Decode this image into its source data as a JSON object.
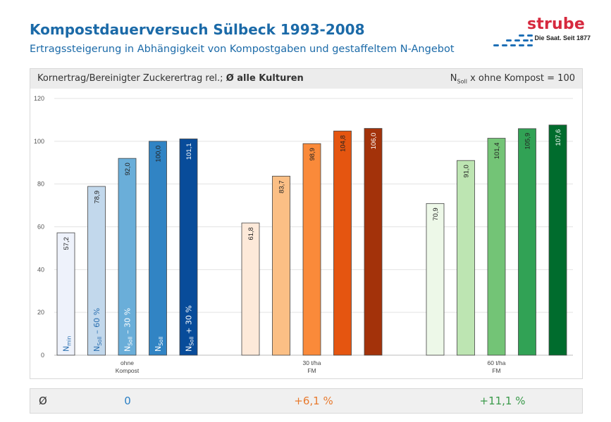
{
  "header": {
    "title": "Kompostdauerversuch Sülbeck 1993-2008",
    "subtitle": "Ertragssteigerung in Abhängigkeit von Kompostgaben und gestaffeltem N-Angebot"
  },
  "logo": {
    "word": "strube",
    "tagline": "Die Saat. Seit 1877",
    "color": "#d6293e",
    "dots_color": "#1e6fb6"
  },
  "chart_header": {
    "left_prefix": "Kornertrag/Bereinigter Zuckerertrag rel.; ",
    "left_bold": "Ø alle Kulturen",
    "right_main": "N",
    "right_sub": "Soll",
    "right_rest": " x ohne Kompost = 100"
  },
  "chart_data": {
    "type": "bar",
    "ylim": [
      0,
      120
    ],
    "yticks": [
      0,
      20,
      40,
      60,
      80,
      100,
      120
    ],
    "grid": true,
    "groups": [
      {
        "label_lines": [
          "ohne",
          "Kompost"
        ],
        "values": [
          57.2,
          78.9,
          92.0,
          100.0,
          101.1
        ],
        "value_labels": [
          "57,2",
          "78,9",
          "92,0",
          "100,0",
          "101,1"
        ],
        "colors": [
          "#eef2fb",
          "#c2d8ec",
          "#6aaed9",
          "#3184c4",
          "#084c9a"
        ],
        "label_colors": [
          "#222",
          "#222",
          "#222",
          "#222",
          "#ffffff"
        ]
      },
      {
        "label_lines": [
          "30 t/ha",
          "FM"
        ],
        "values": [
          61.8,
          83.7,
          98.9,
          104.8,
          106.0
        ],
        "value_labels": [
          "61,8",
          "83,7",
          "98,9",
          "104,8",
          "106,0"
        ],
        "colors": [
          "#fde9d9",
          "#fbbf85",
          "#fa8a3a",
          "#e55510",
          "#a3320a"
        ],
        "label_colors": [
          "#222",
          "#222",
          "#222",
          "#222",
          "#ffffff"
        ]
      },
      {
        "label_lines": [
          "60 t/ha",
          "FM"
        ],
        "values": [
          70.9,
          91.0,
          101.4,
          105.9,
          107.6
        ],
        "value_labels": [
          "70,9",
          "91,0",
          "101,4",
          "105,9",
          "107,6"
        ],
        "colors": [
          "#edf8e8",
          "#bde5b2",
          "#73c476",
          "#31a255",
          "#006c2d"
        ],
        "label_colors": [
          "#222",
          "#222",
          "#222",
          "#222",
          "#ffffff"
        ]
      }
    ],
    "n_labels": [
      {
        "main": "N",
        "sub": "min",
        "rest": "",
        "color": "#2a6fb0"
      },
      {
        "main": "N",
        "sub": "Soll",
        "rest": " – 60 %",
        "color": "#2a6fb0"
      },
      {
        "main": "N",
        "sub": "Soll",
        "rest": " – 30 %",
        "color": "#ffffff"
      },
      {
        "main": "N",
        "sub": "Soll",
        "rest": "",
        "color": "#ffffff"
      },
      {
        "main": "N",
        "sub": "Soll",
        "rest": " + 30 %",
        "color": "#ffffff"
      }
    ]
  },
  "summary": {
    "symbol": "Ø",
    "values": [
      {
        "text": "0",
        "color": "#2a7fc4"
      },
      {
        "text": "+6,1 %",
        "color": "#e87a2e"
      },
      {
        "text": "+11,1 %",
        "color": "#3a9a4a"
      }
    ]
  }
}
